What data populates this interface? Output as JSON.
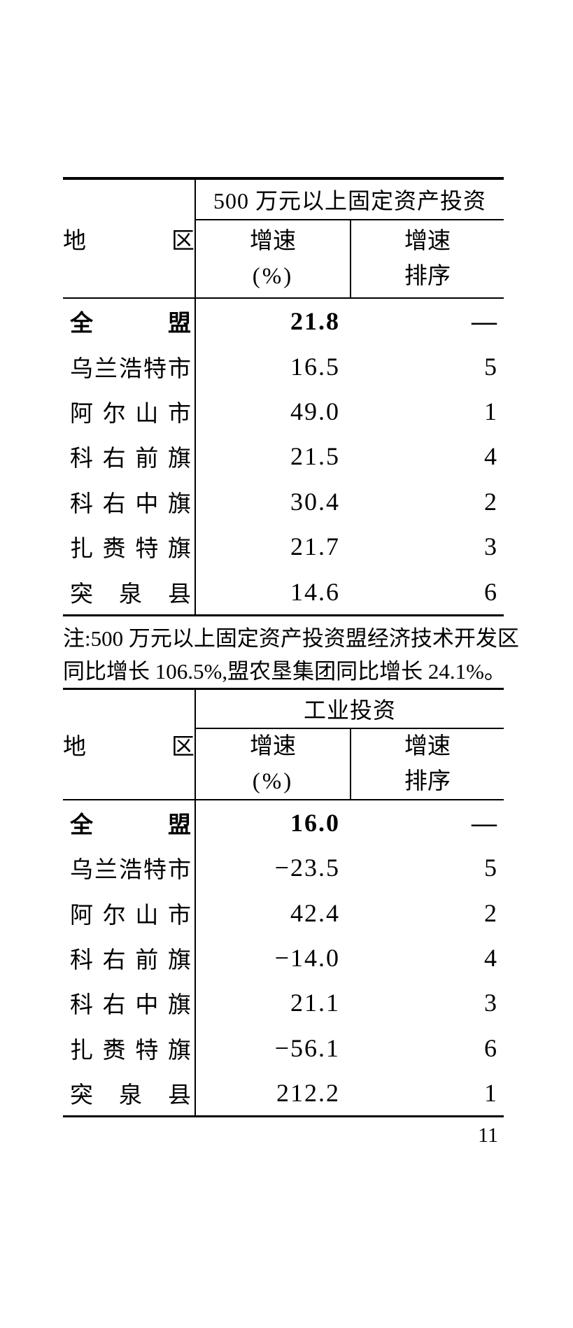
{
  "page": {
    "number": "11",
    "paper_color": "#ffffff",
    "ink_color": "#000000"
  },
  "tables": [
    {
      "span_header": "500 万元以上固定资产投资",
      "region_header": "地区",
      "growth_header_line1": "增速",
      "growth_header_line2": "(%)",
      "rank_header_line1": "增速",
      "rank_header_line2": "排序",
      "rows": [
        {
          "region": "全盟",
          "growth": "21.8",
          "rank": "—"
        },
        {
          "region": "乌兰浩特市",
          "growth": "16.5",
          "rank": "5"
        },
        {
          "region": "阿尔山市",
          "growth": "49.0",
          "rank": "1"
        },
        {
          "region": "科右前旗",
          "growth": "21.5",
          "rank": "4"
        },
        {
          "region": "科右中旗",
          "growth": "30.4",
          "rank": "2"
        },
        {
          "region": "扎赉特旗",
          "growth": "21.7",
          "rank": "3"
        },
        {
          "region": "突泉县",
          "growth": "14.6",
          "rank": "6"
        }
      ],
      "note_lines": [
        "注:500 万元以上固定资产投资盟经济技术开发区",
        "同比增长 106.5%,盟农垦集团同比增长 24.1%。"
      ]
    },
    {
      "span_header": "工业投资",
      "region_header": "地区",
      "growth_header_line1": "增速",
      "growth_header_line2": "(%)",
      "rank_header_line1": "增速",
      "rank_header_line2": "排序",
      "rows": [
        {
          "region": "全盟",
          "growth": "16.0",
          "rank": "—"
        },
        {
          "region": "乌兰浩特市",
          "growth": "−23.5",
          "rank": "5"
        },
        {
          "region": "阿尔山市",
          "growth": "42.4",
          "rank": "2"
        },
        {
          "region": "科右前旗",
          "growth": "−14.0",
          "rank": "4"
        },
        {
          "region": "科右中旗",
          "growth": "21.1",
          "rank": "3"
        },
        {
          "region": "扎赉特旗",
          "growth": "−56.1",
          "rank": "6"
        },
        {
          "region": "突泉县",
          "growth": "212.2",
          "rank": "1"
        }
      ]
    }
  ]
}
